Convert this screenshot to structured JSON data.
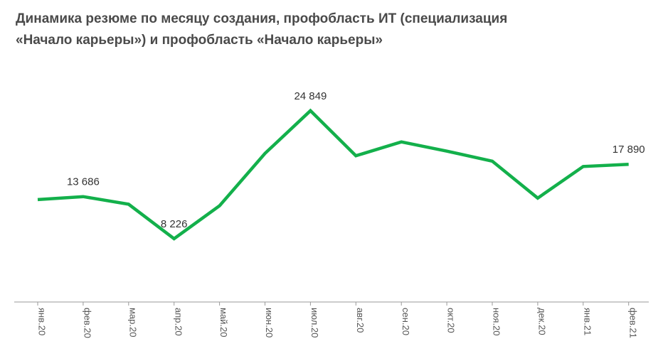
{
  "chart_data": {
    "type": "line",
    "title_lines": [
      "Динамика резюме по месяцу создания, профобласть ИТ (специализация",
      "«Начало карьеры») и профобласть «Начало карьеры»"
    ],
    "categories": [
      "янв.20",
      "фев.20",
      "мар.20",
      "апр.20",
      "май.20",
      "июн.20",
      "июл.20",
      "авг.20",
      "сен.20",
      "окт.20",
      "ноя.20",
      "дек.20",
      "янв.21",
      "фев.21"
    ],
    "series": [
      {
        "values": [
          13300,
          13686,
          12700,
          8226,
          12500,
          19300,
          24849,
          19000,
          20800,
          19600,
          18300,
          13500,
          17600,
          17890
        ],
        "color": "#13b04b"
      }
    ],
    "data_labels": [
      {
        "index": 1,
        "text": "13 686"
      },
      {
        "index": 3,
        "text": "8 226"
      },
      {
        "index": 6,
        "text": "24 849"
      },
      {
        "index": 13,
        "text": "17 890"
      }
    ],
    "ylim": [
      0,
      30000
    ],
    "grid": false,
    "axis_color": "#9a9a9a"
  }
}
